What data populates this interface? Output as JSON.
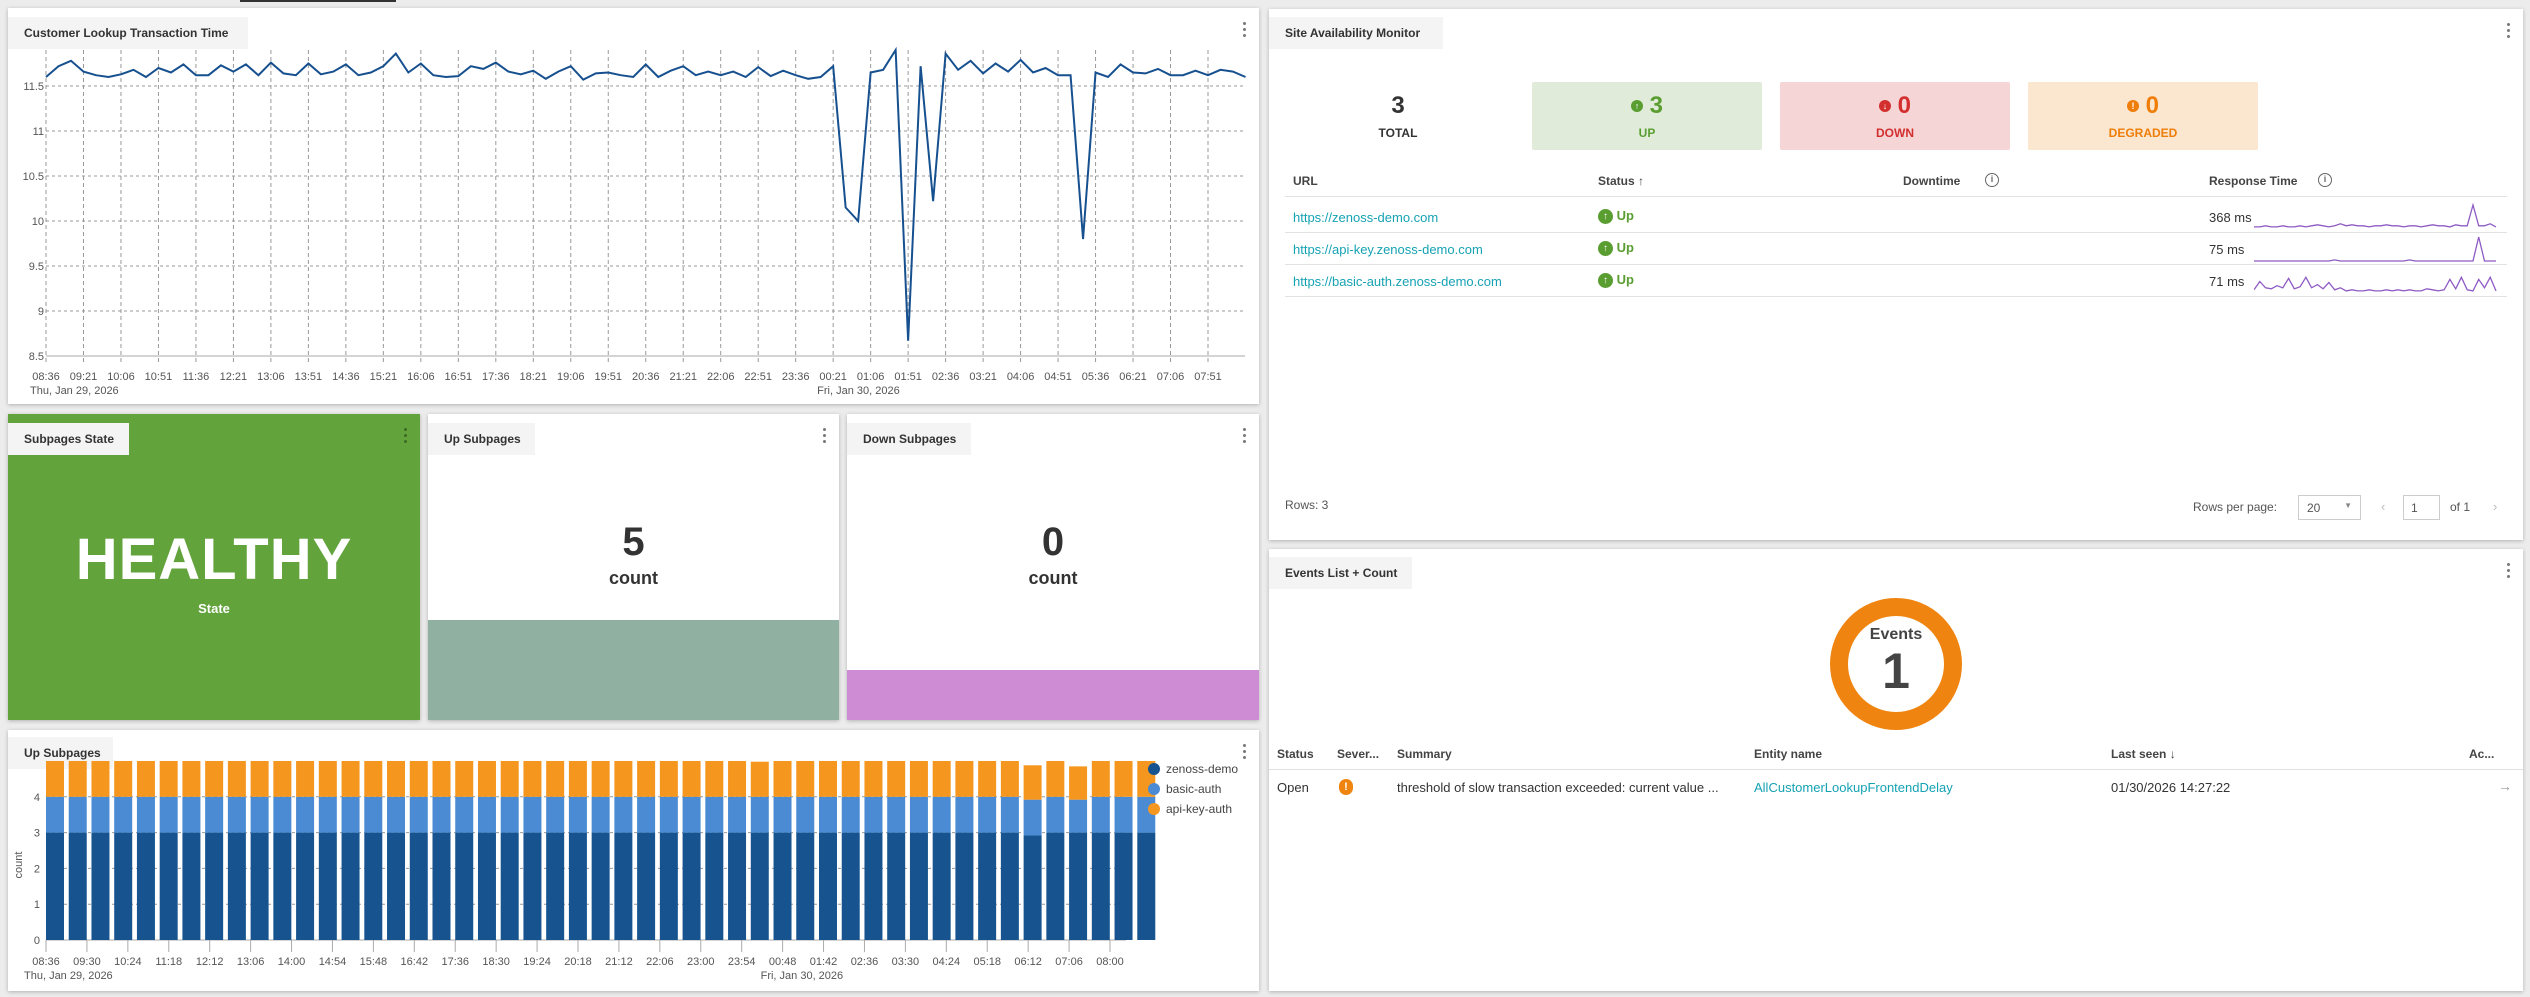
{
  "colors": {
    "line": "#17508f",
    "zenoss": "#17548f",
    "basic": "#4a8bd4",
    "apikey": "#f5961e",
    "healthy": "#62a33c",
    "up": "#5a9e32",
    "down": "#d32f2f",
    "degraded": "#ef7d0a",
    "teal_bar": "#90b0a2",
    "purple_bar": "#cd8cd4",
    "link": "#15a2b3",
    "donut": "#ef8510",
    "spark": "#8e5bc4"
  },
  "transaction_panel": {
    "title": "Customer Lookup Transaction Time"
  },
  "chart_data": [
    {
      "type": "line",
      "title": "Customer Lookup Transaction Time",
      "ylim": [
        8.5,
        11.9
      ],
      "yticks": [
        "8.5",
        "9",
        "9.5",
        "10",
        "10.5",
        "11",
        "11.5"
      ],
      "ytick_values": [
        8.5,
        9,
        9.5,
        10,
        10.5,
        11,
        11.5
      ],
      "xticks": [
        "08:36",
        "09:21",
        "10:06",
        "10:51",
        "11:36",
        "12:21",
        "13:06",
        "13:51",
        "14:36",
        "15:21",
        "16:06",
        "16:51",
        "17:36",
        "18:21",
        "19:06",
        "19:51",
        "20:36",
        "21:21",
        "22:06",
        "22:51",
        "23:36",
        "00:21",
        "01:06",
        "01:51",
        "02:36",
        "03:21",
        "04:06",
        "04:51",
        "05:36",
        "06:21",
        "07:06",
        "07:51"
      ],
      "date_labels": [
        {
          "label": "Thu, Jan 29, 2026",
          "at_tick": "08:36"
        },
        {
          "label": "Fri, Jan 30, 2026",
          "at_tick": "00:21"
        }
      ],
      "start": "2026-01-29 08:36",
      "sample_interval_minutes": 15,
      "grid": true,
      "values": [
        11.6,
        11.72,
        11.78,
        11.66,
        11.62,
        11.6,
        11.63,
        11.68,
        11.6,
        11.7,
        11.65,
        11.74,
        11.62,
        11.62,
        11.73,
        11.66,
        11.74,
        11.62,
        11.76,
        11.64,
        11.62,
        11.75,
        11.63,
        11.66,
        11.74,
        11.62,
        11.65,
        11.72,
        11.86,
        11.65,
        11.75,
        11.62,
        11.6,
        11.61,
        11.72,
        11.69,
        11.76,
        11.66,
        11.63,
        11.67,
        11.58,
        11.66,
        11.72,
        11.57,
        11.64,
        11.65,
        11.62,
        11.6,
        11.74,
        11.6,
        11.67,
        11.72,
        11.62,
        11.66,
        11.62,
        11.66,
        11.6,
        11.71,
        11.61,
        11.67,
        11.62,
        11.58,
        11.6,
        11.72,
        10.15,
        10.0,
        11.65,
        11.68,
        11.9,
        8.67,
        11.72,
        10.22,
        11.86,
        11.68,
        11.78,
        11.64,
        11.75,
        11.66,
        11.79,
        11.65,
        11.7,
        11.62,
        11.62,
        9.8,
        11.65,
        11.6,
        11.74,
        11.65,
        11.64,
        11.69,
        11.62,
        11.62,
        11.67,
        11.62,
        11.68,
        11.66,
        11.6
      ]
    },
    {
      "type": "bar",
      "stacked": true,
      "title": "Up Subpages",
      "ylabel": "count",
      "ylim": [
        0,
        5
      ],
      "yticks": [
        "0",
        "1",
        "2",
        "3",
        "4"
      ],
      "ytick_values": [
        0,
        1,
        2,
        3,
        4
      ],
      "xticks": [
        "08:36",
        "09:30",
        "10:24",
        "11:18",
        "12:12",
        "13:06",
        "14:00",
        "14:54",
        "15:48",
        "16:42",
        "17:36",
        "18:30",
        "19:24",
        "20:18",
        "21:12",
        "22:06",
        "23:00",
        "23:54",
        "00:48",
        "01:42",
        "02:36",
        "03:30",
        "04:24",
        "05:18",
        "06:12",
        "07:06",
        "08:00"
      ],
      "date_labels": [
        {
          "label": "Thu, Jan 29, 2026",
          "at_tick": "08:36"
        },
        {
          "label": "Fri, Jan 30, 2026",
          "at_tick": "00:48"
        }
      ],
      "start": "2026-01-29 08:36",
      "sample_interval_minutes": 30,
      "legend_position": "right",
      "grid": true,
      "series": [
        {
          "name": "zenoss-demo",
          "values": [
            3,
            3,
            3,
            3,
            3,
            3,
            3,
            3,
            3,
            3,
            3,
            3,
            3,
            3,
            3,
            3,
            3,
            3,
            3,
            3,
            3,
            3,
            3,
            3,
            3,
            3,
            3,
            3,
            3,
            3,
            3,
            3,
            3,
            3,
            3,
            3,
            3,
            3,
            3,
            3,
            3,
            3,
            3,
            2.92,
            3,
            3,
            3,
            3,
            3
          ]
        },
        {
          "name": "basic-auth",
          "values": [
            1,
            1,
            1,
            1,
            1,
            1,
            1,
            1,
            1,
            1,
            1,
            1,
            1,
            1,
            1,
            1,
            1,
            1,
            1,
            1,
            1,
            1,
            1,
            1,
            1,
            1,
            1,
            1,
            1,
            1,
            1,
            1,
            1,
            1,
            1,
            1,
            1,
            1,
            1,
            1,
            1,
            1,
            1,
            1,
            1,
            0.92,
            1,
            1,
            1
          ]
        },
        {
          "name": "api-key-auth",
          "values": [
            1,
            1,
            1,
            1,
            1,
            1,
            1,
            1,
            1,
            1,
            1,
            1,
            1,
            1,
            1,
            1,
            1,
            1,
            1,
            1,
            1,
            1,
            1,
            1,
            1,
            1,
            1,
            1,
            1,
            1,
            1,
            0.98,
            1,
            1,
            1,
            1,
            1,
            1,
            1,
            1,
            1,
            1,
            1,
            0.96,
            1,
            0.93,
            1,
            1,
            1
          ]
        }
      ]
    }
  ],
  "subpages_state": {
    "title": "Subpages State",
    "value": "HEALTHY",
    "label": "State"
  },
  "up_subpages_tile": {
    "title": "Up Subpages",
    "value": "5",
    "label": "count"
  },
  "down_subpages_tile": {
    "title": "Down Subpages",
    "value": "0",
    "label": "count"
  },
  "up_subpages_chart": {
    "title": "Up Subpages"
  },
  "site_monitor": {
    "title": "Site Availability Monitor",
    "summary": {
      "total": "3",
      "total_label": "TOTAL",
      "up": "3",
      "up_label": "UP",
      "down": "0",
      "down_label": "DOWN",
      "degraded": "0",
      "degraded_label": "DEGRADED"
    },
    "columns": {
      "url": "URL",
      "status": "Status",
      "downtime": "Downtime",
      "response": "Response Time"
    },
    "rows": [
      {
        "url": "https://zenoss-demo.com",
        "status": "Up",
        "response": "368 ms",
        "history": [
          3,
          3,
          4,
          3,
          3,
          4,
          3,
          3,
          4,
          3,
          4,
          5,
          4,
          3,
          4,
          6,
          4,
          5,
          4,
          4,
          3,
          4,
          4,
          5,
          4,
          4,
          3,
          4,
          4,
          3,
          4,
          5,
          4,
          4,
          3,
          5,
          4,
          4,
          24,
          4,
          4,
          6,
          3
        ]
      },
      {
        "url": "https://api-key.zenoss-demo.com",
        "status": "Up",
        "response": "75 ms",
        "history": [
          1,
          1,
          1,
          1,
          1,
          1,
          1,
          1,
          1,
          1,
          1,
          1,
          1,
          1,
          2,
          1,
          1,
          1,
          1,
          1,
          1,
          1,
          1,
          1,
          1,
          1,
          1,
          2,
          1,
          1,
          1,
          1,
          1,
          1,
          1,
          1,
          1,
          1,
          1,
          24,
          1,
          1,
          1
        ]
      },
      {
        "url": "https://basic-auth.zenoss-demo.com",
        "status": "Up",
        "response": "71 ms",
        "history": [
          4,
          12,
          6,
          5,
          8,
          6,
          15,
          5,
          7,
          16,
          6,
          9,
          5,
          11,
          4,
          6,
          3,
          4,
          3,
          3,
          4,
          3,
          3,
          4,
          3,
          4,
          3,
          4,
          3,
          3,
          5,
          4,
          3,
          4,
          14,
          5,
          16,
          4,
          3,
          14,
          6,
          16,
          3
        ]
      }
    ],
    "footer": {
      "rows": "Rows: 3",
      "rows_per_page_label": "Rows per page:",
      "rows_per_page": "20",
      "page": "1",
      "of": "of 1"
    }
  },
  "events_panel": {
    "title": "Events List + Count",
    "donut_label": "Events",
    "count": "1",
    "columns": {
      "status": "Status",
      "severity": "Sever...",
      "summary": "Summary",
      "entity": "Entity name",
      "last_seen": "Last seen",
      "actions": "Ac..."
    },
    "rows": [
      {
        "status": "Open",
        "severity": "warning",
        "summary": "threshold of slow transaction exceeded: current value ...",
        "entity": "AllCustomerLookupFrontendDelay",
        "last_seen": "01/30/2026 14:27:22"
      }
    ]
  }
}
